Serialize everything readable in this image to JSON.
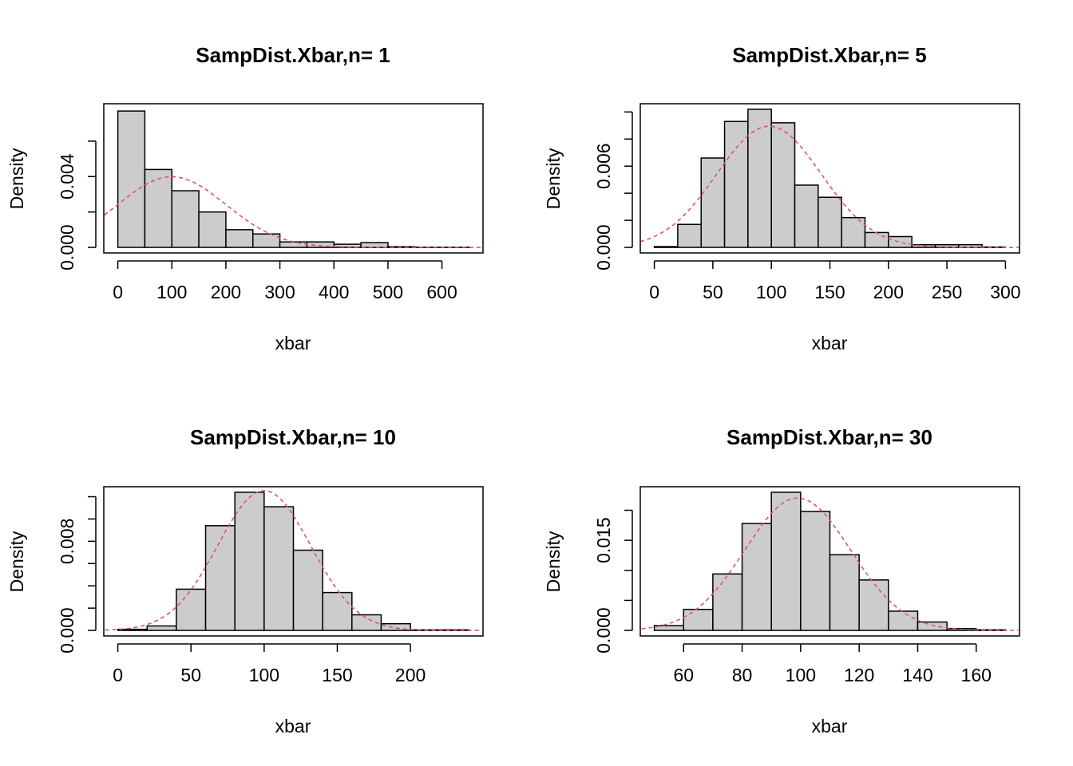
{
  "chart_data": [
    {
      "type": "bar",
      "title": "SampDist.Xbar,n= 1",
      "xlabel": "xbar",
      "ylabel": "Density",
      "bin_width": 50,
      "bin_start": 0,
      "values": [
        0.0077,
        0.0044,
        0.0032,
        0.002,
        0.001,
        0.00076,
        0.00031,
        0.00031,
        0.00018,
        0.00027,
        4e-05,
        1e-05,
        1e-05
      ],
      "xlim": [
        -25,
        675
      ],
      "ylim": [
        0,
        0.0078
      ],
      "xticks": [
        0,
        100,
        200,
        300,
        400,
        500,
        600
      ],
      "yticks": [
        0,
        0.002,
        0.004,
        0.006
      ],
      "ytick_labels": [
        "0.000",
        "",
        "0.004",
        ""
      ],
      "normal_curve": {
        "mean": 100,
        "sd": 100,
        "color": "#DF536B"
      }
    },
    {
      "type": "bar",
      "title": "SampDist.Xbar,n= 5",
      "xlabel": "xbar",
      "ylabel": "Density",
      "bin_width": 20,
      "bin_start": 0,
      "values": [
        6e-05,
        0.0017,
        0.0066,
        0.0093,
        0.0102,
        0.0092,
        0.0046,
        0.0037,
        0.0022,
        0.0011,
        0.0008,
        0.0002,
        0.0002,
        0.0002,
        3e-05
      ],
      "xlim": [
        -12,
        312
      ],
      "ylim": [
        0,
        0.0102
      ],
      "xticks": [
        0,
        50,
        100,
        150,
        200,
        250,
        300
      ],
      "yticks": [
        0,
        0.002,
        0.004,
        0.006,
        0.008,
        0.01
      ],
      "ytick_labels": [
        "0.000",
        "",
        "",
        "0.006",
        "",
        ""
      ],
      "normal_curve": {
        "mean": 98,
        "sd": 44.6,
        "color": "#DF536B"
      }
    },
    {
      "type": "bar",
      "title": "SampDist.Xbar,n= 10",
      "xlabel": "xbar",
      "ylabel": "Density",
      "bin_width": 20,
      "bin_start": 0,
      "values": [
        0.0001,
        0.0004,
        0.0037,
        0.0094,
        0.0124,
        0.0111,
        0.0072,
        0.0034,
        0.0014,
        0.0006,
        5e-05,
        5e-05
      ],
      "xlim": [
        -10,
        250
      ],
      "ylim": [
        0,
        0.0124
      ],
      "xticks": [
        0,
        50,
        100,
        150,
        200
      ],
      "yticks": [
        0,
        0.002,
        0.004,
        0.006,
        0.008,
        0.01,
        0.012
      ],
      "ytick_labels": [
        "0.000",
        "",
        "",
        "",
        "0.008",
        "",
        ""
      ],
      "normal_curve": {
        "mean": 100,
        "sd": 31.8,
        "color": "#DF536B"
      }
    },
    {
      "type": "bar",
      "title": "SampDist.Xbar,n= 30",
      "xlabel": "xbar",
      "ylabel": "Density",
      "bin_width": 10,
      "bin_start": 50,
      "values": [
        0.0008,
        0.0035,
        0.0094,
        0.0178,
        0.023,
        0.0198,
        0.0126,
        0.0084,
        0.0032,
        0.0014,
        0.0003,
        0.0001
      ],
      "xlim": [
        45,
        175
      ],
      "ylim": [
        0,
        0.023
      ],
      "xticks": [
        60,
        80,
        100,
        120,
        140,
        160
      ],
      "yticks": [
        0,
        0.005,
        0.01,
        0.015,
        0.02
      ],
      "ytick_labels": [
        "0.000",
        "",
        "",
        "0.015",
        ""
      ],
      "normal_curve": {
        "mean": 99,
        "sd": 18.1,
        "color": "#DF536B"
      }
    }
  ]
}
